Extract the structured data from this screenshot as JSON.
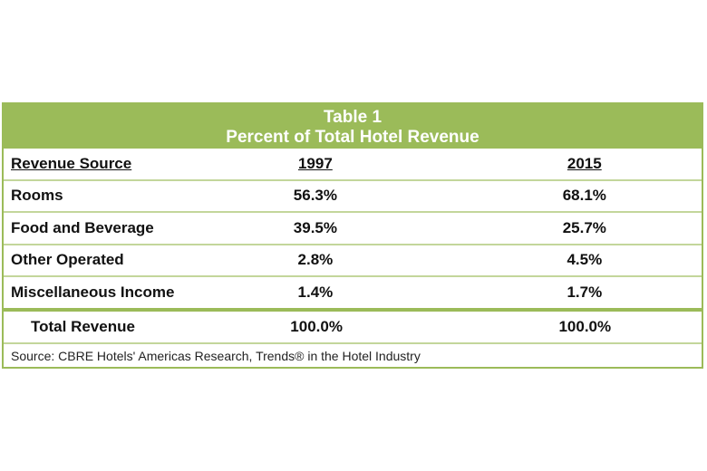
{
  "table": {
    "title_line1": "Table 1",
    "title_line2": "Percent of Total Hotel Revenue",
    "headers": [
      "Revenue Source",
      "1997",
      "2015"
    ],
    "rows": [
      [
        "Rooms",
        "56.3%",
        "68.1%"
      ],
      [
        "Food and Beverage",
        "39.5%",
        "25.7%"
      ],
      [
        "Other Operated",
        "2.8%",
        "4.5%"
      ],
      [
        "Miscellaneous Income",
        "1.4%",
        "1.7%"
      ]
    ],
    "total": [
      "Total Revenue",
      "100.0%",
      "100.0%"
    ],
    "source": "Source: CBRE Hotels' Americas Research, Trends® in the Hotel Industry",
    "accent_color": "#9bbb59"
  }
}
